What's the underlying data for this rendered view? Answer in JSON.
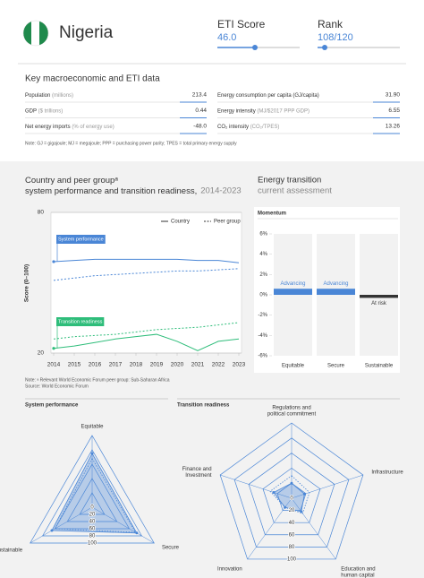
{
  "header": {
    "country": "Nigeria",
    "eti_label": "ETI Score",
    "eti_value": "46.0",
    "rank_label": "Rank",
    "rank_value": "108/120"
  },
  "macro": {
    "title": "Key macroeconomic and ETI data",
    "rows": [
      {
        "label": "Population",
        "unit": "(millions)",
        "value": "213.4"
      },
      {
        "label": "GDP",
        "unit": "($ trillions)",
        "value": "0.44"
      },
      {
        "label": "Net energy imports",
        "unit": "(% of energy use)",
        "value": "-48.0"
      },
      {
        "label": "Energy consumption per capita (GJ/capita)",
        "value": "31.90"
      },
      {
        "label": "Energy intensity",
        "unit": "(MJ/$2017 PPP GDP)",
        "value": "6.55"
      },
      {
        "label": "CO₂ intensity",
        "unit": "(CO₂/TPES)",
        "value": "13.26"
      }
    ],
    "note": "Note: GJ = gigajoule; MJ = megajoule; PPP = purchasing power parity; TPES = total primary energy supply"
  },
  "notes": {
    "peer": "Note: ᵃ Relevant World Economic Forum peer group: Sub-Saharan Africa",
    "source": "Source: World Economic Forum"
  },
  "chart_data": [
    {
      "type": "line",
      "title": "Country and peer groupᵃ system performance and transition readiness,",
      "subtitle": "2014-2023",
      "ylabel": "Score (0–100)",
      "x": [
        2014,
        2015,
        2016,
        2017,
        2018,
        2019,
        2020,
        2021,
        2022,
        2023
      ],
      "xlim": [
        2014,
        2023
      ],
      "xticks": [
        2014,
        2015,
        2016,
        2017,
        2018,
        2019,
        2020,
        2021,
        2022,
        2023
      ],
      "ylim": [
        20,
        80
      ],
      "yticks": [
        20,
        80
      ],
      "grid": true,
      "series": [
        {
          "group": "System performance",
          "name": "Country",
          "color": "#4a86d6",
          "style": "solid",
          "values": [
            59,
            59.5,
            60,
            60,
            60,
            60,
            60,
            59.5,
            59.5,
            58.5
          ]
        },
        {
          "group": "System performance",
          "name": "Peer group",
          "color": "#4a86d6",
          "style": "dashed",
          "values": [
            51,
            52,
            53,
            53.5,
            54,
            54.5,
            55,
            55,
            55.5,
            56
          ]
        },
        {
          "group": "Transition readiness",
          "name": "Country",
          "color": "#2ebd7a",
          "style": "solid",
          "values": [
            22,
            23,
            24.5,
            26,
            27,
            28,
            25,
            21,
            25,
            26
          ]
        },
        {
          "group": "Transition readiness",
          "name": "Peer group",
          "color": "#2ebd7a",
          "style": "dashed",
          "values": [
            26,
            27,
            27.5,
            28,
            29,
            30,
            30.5,
            31,
            32,
            33
          ]
        }
      ]
    },
    {
      "type": "bar",
      "title": "Energy transition",
      "subtitle": "current assessment",
      "panel_title": "Momentum",
      "categories": [
        "Equitable",
        "Secure",
        "Sustainable"
      ],
      "values": [
        0.6,
        0.6,
        -0.3
      ],
      "statuses": [
        "Advancing",
        "Advancing",
        "At risk"
      ],
      "colors": [
        "#4a86d6",
        "#4a86d6",
        "#333333"
      ],
      "ylim": [
        -6,
        6
      ],
      "yticks": [
        {
          "value": -6,
          "label": "-6%"
        },
        {
          "value": -4,
          "label": "-4%"
        },
        {
          "value": -2,
          "label": "-2%"
        },
        {
          "value": 0,
          "label": "0%"
        },
        {
          "value": 2,
          "label": "2%"
        },
        {
          "value": 4,
          "label": "4%"
        },
        {
          "value": 6,
          "label": "6%"
        }
      ]
    },
    {
      "type": "radar",
      "title": "System performance",
      "axes": [
        [
          "Equitable"
        ],
        [
          "Secure"
        ],
        [
          "Sustainable"
        ]
      ],
      "ticks": [
        0,
        20,
        40,
        60,
        80,
        100
      ],
      "rlim": [
        0,
        100
      ],
      "series": [
        {
          "name": "Country",
          "color": "#4a86d6",
          "values": [
            75,
            72,
            65
          ]
        },
        {
          "name": "Peer group",
          "color": "#4a86d6",
          "values": [
            68,
            70,
            60
          ]
        }
      ]
    },
    {
      "type": "radar",
      "title": "Transition readiness",
      "axes": [
        [
          "Regulations and",
          "political commitment"
        ],
        [
          "Infrastructure"
        ],
        [
          "Education and",
          "human capital"
        ],
        [
          "Innovation"
        ],
        [
          "Finance and",
          "Investment"
        ]
      ],
      "ticks": [
        0,
        20,
        40,
        60,
        80,
        100
      ],
      "rlim": [
        0,
        100
      ],
      "series": [
        {
          "name": "Country",
          "color": "#4a86d6",
          "values": [
            20,
            18,
            22,
            15,
            25
          ]
        },
        {
          "name": "Peer group",
          "color": "#4a86d6",
          "values": [
            30,
            25,
            25,
            15,
            30
          ]
        }
      ]
    }
  ]
}
